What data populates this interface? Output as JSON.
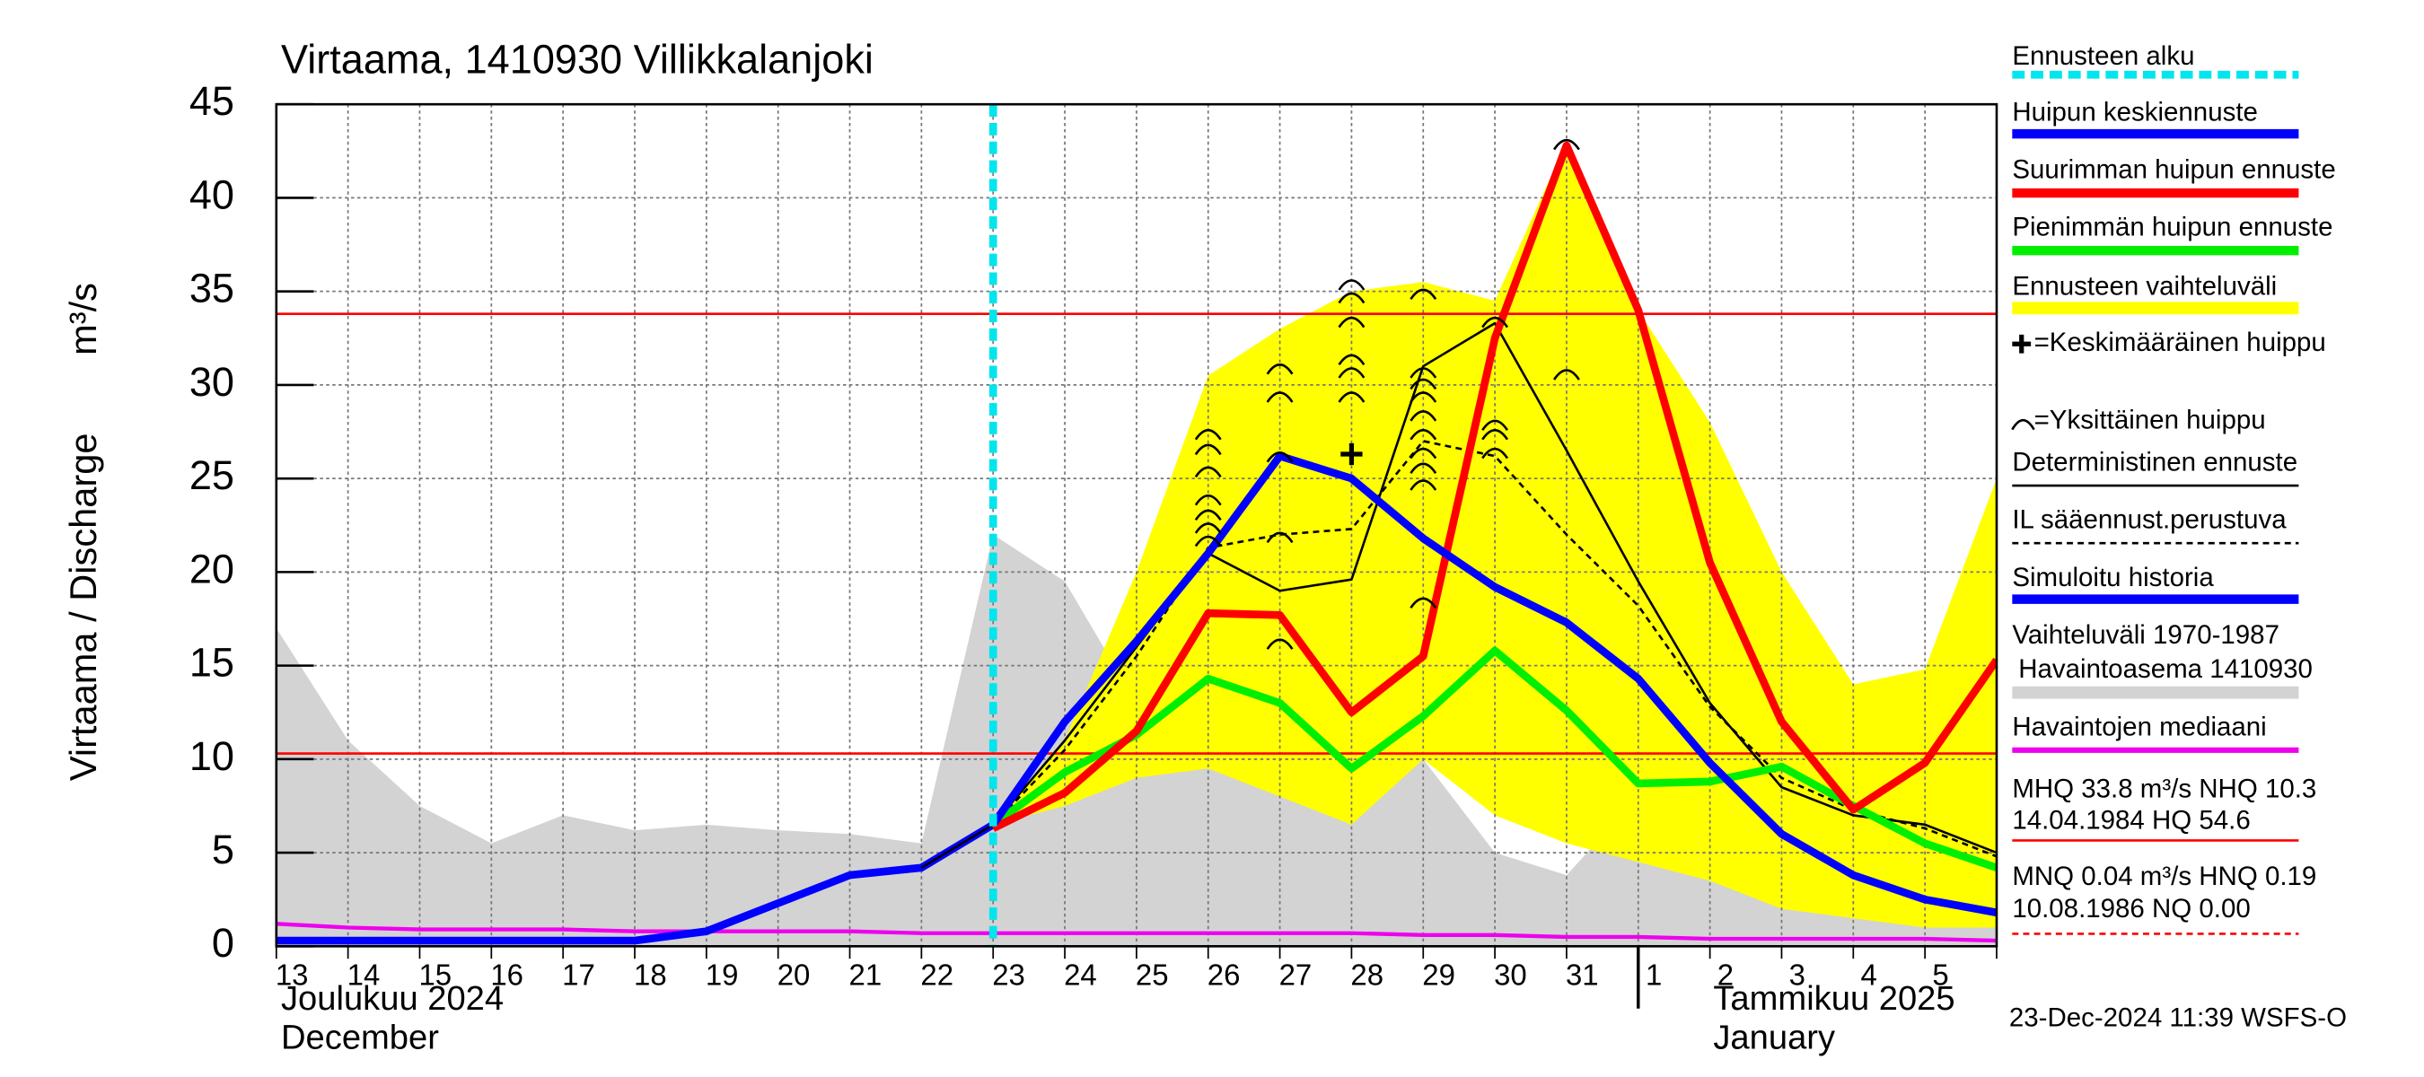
{
  "chart_data": {
    "type": "line",
    "title": "Virtaama, 1410930 Villikkalanjoki",
    "ylabel": "Virtaama / Discharge",
    "yunit": "m³/s",
    "categories": [
      "13",
      "14",
      "15",
      "16",
      "17",
      "18",
      "19",
      "20",
      "21",
      "22",
      "23",
      "24",
      "25",
      "26",
      "27",
      "28",
      "29",
      "30",
      "31",
      "1",
      "2",
      "3",
      "4",
      "5",
      null
    ],
    "month_labels": [
      [
        "Joulukuu  2024",
        "December"
      ],
      [
        "Tammikuu  2025",
        "January"
      ]
    ],
    "timestamp": "23-Dec-2024 11:39 WSFS-O",
    "ylim": [
      0,
      45
    ],
    "yticks": [
      0,
      5,
      10,
      15,
      20,
      25,
      30,
      35,
      40,
      45
    ],
    "grid": true,
    "hlines": [
      {
        "value": 33.8,
        "color": "#ff0000"
      },
      {
        "value": 10.3,
        "color": "#ff0000"
      },
      {
        "value": 0,
        "color": "#ff0000",
        "dashed": true
      }
    ],
    "notes": [
      [
        "MHQ 33.8 m³/s NHQ 10.3",
        "14.04.1984 HQ 54.6"
      ],
      [
        "MNQ 0.04 m³/s HNQ 0.19",
        "10.08.1986 NQ 0.00"
      ]
    ],
    "series": [
      {
        "name": "Ennusteen alku",
        "kind": "vline",
        "color": "#00e5ee",
        "x": 10
      },
      {
        "name": "Huipun keskiennuste",
        "kind": "line",
        "color": "#0000ff",
        "width": 5,
        "values": [
          null,
          null,
          null,
          null,
          null,
          null,
          null,
          null,
          null,
          null,
          6.5,
          12,
          16.3,
          21,
          26.2,
          25,
          21.8,
          19.2,
          17.3,
          14.3,
          9.8,
          6,
          3.8,
          2.5,
          1.8
        ]
      },
      {
        "name": "Suurimman huipun ennuste",
        "kind": "line",
        "color": "#ff0000",
        "width": 5,
        "values": [
          null,
          null,
          null,
          null,
          null,
          null,
          null,
          null,
          null,
          null,
          6.3,
          8.2,
          11.5,
          17.8,
          17.7,
          12.5,
          15.5,
          32.5,
          42.8,
          34,
          20.5,
          12,
          7.3,
          9.8,
          15.3
        ]
      },
      {
        "name": "Pienimmän huipun ennuste",
        "kind": "line",
        "color": "#00ee00",
        "width": 5,
        "values": [
          null,
          null,
          null,
          null,
          null,
          null,
          null,
          null,
          null,
          null,
          6.5,
          9.3,
          11.3,
          14.3,
          13,
          9.5,
          12.3,
          15.8,
          12.6,
          8.7,
          8.8,
          9.6,
          7.5,
          5.5,
          4.2
        ]
      },
      {
        "name": "Ennusteen vaihteluväli",
        "kind": "band",
        "color": "#ffff00",
        "upper": [
          null,
          null,
          null,
          null,
          null,
          null,
          null,
          null,
          null,
          null,
          6.5,
          11,
          20,
          30.5,
          33,
          35,
          35.5,
          34.5,
          43,
          34,
          28,
          20,
          14,
          14.8,
          25
        ],
        "lower": [
          null,
          null,
          null,
          null,
          null,
          null,
          null,
          null,
          null,
          null,
          6.5,
          7.5,
          9,
          9.5,
          8,
          6.5,
          10,
          7,
          5.5,
          4.5,
          3.5,
          2,
          1.5,
          1,
          1
        ]
      },
      {
        "name": "=Keskimääräinen huippu",
        "kind": "plus",
        "color": "#000000",
        "points": [
          {
            "x": 15,
            "y": 26.3
          }
        ]
      },
      {
        "name": "=Yksittäinen huippu",
        "kind": "arc",
        "color": "#000000",
        "points": [
          {
            "x": 13,
            "y": 27.5
          },
          {
            "x": 13,
            "y": 26.7
          },
          {
            "x": 13,
            "y": 25.5
          },
          {
            "x": 13,
            "y": 24
          },
          {
            "x": 13,
            "y": 22.5
          },
          {
            "x": 13,
            "y": 21.8
          },
          {
            "x": 13,
            "y": 23.2
          },
          {
            "x": 14,
            "y": 31
          },
          {
            "x": 14,
            "y": 29.5
          },
          {
            "x": 14,
            "y": 26.3
          },
          {
            "x": 14,
            "y": 22
          },
          {
            "x": 14,
            "y": 16.3
          },
          {
            "x": 15,
            "y": 35.5
          },
          {
            "x": 15,
            "y": 34.8
          },
          {
            "x": 15,
            "y": 33.5
          },
          {
            "x": 15,
            "y": 31.5
          },
          {
            "x": 15,
            "y": 30.8
          },
          {
            "x": 15,
            "y": 29.5
          },
          {
            "x": 16,
            "y": 35
          },
          {
            "x": 16,
            "y": 30.8
          },
          {
            "x": 16,
            "y": 30.2
          },
          {
            "x": 16,
            "y": 29.5
          },
          {
            "x": 16,
            "y": 28.5
          },
          {
            "x": 16,
            "y": 27.5
          },
          {
            "x": 16,
            "y": 26.5
          },
          {
            "x": 16,
            "y": 25.7
          },
          {
            "x": 16,
            "y": 24.8
          },
          {
            "x": 16,
            "y": 18.5
          },
          {
            "x": 17,
            "y": 33.5
          },
          {
            "x": 17,
            "y": 28
          },
          {
            "x": 17,
            "y": 27.5
          },
          {
            "x": 17,
            "y": 26.5
          },
          {
            "x": 18,
            "y": 43
          },
          {
            "x": 18,
            "y": 30.7
          }
        ]
      },
      {
        "name": "Deterministinen ennuste",
        "kind": "line",
        "color": "#000000",
        "width": 1.5,
        "values": [
          null,
          null,
          null,
          null,
          null,
          null,
          null,
          null,
          null,
          4.2,
          6.5,
          11,
          16,
          21,
          19,
          19.6,
          31,
          33.3,
          26.5,
          19.5,
          13,
          8.5,
          7,
          6.5,
          5
        ]
      },
      {
        "name": "IL sääennust.perustuva",
        "kind": "line",
        "color": "#000000",
        "width": 1.5,
        "dashed": true,
        "values": [
          null,
          null,
          null,
          null,
          null,
          null,
          null,
          null,
          null,
          null,
          6.5,
          10.5,
          15.5,
          21.3,
          22,
          22.3,
          27,
          26.2,
          22,
          18.2,
          12.8,
          9,
          7.3,
          6.3,
          4.8
        ]
      },
      {
        "name": "Simuloitu historia",
        "kind": "line",
        "color": "#0000ff",
        "width": 5,
        "values": [
          0.3,
          0.3,
          0.3,
          0.3,
          0.3,
          0.3,
          0.8,
          2.3,
          3.8,
          4.2,
          6.5,
          null,
          null,
          null,
          null,
          null,
          null,
          null,
          null,
          null,
          null,
          null,
          null,
          null,
          null
        ]
      },
      {
        "name": "Vaihteluväli 1970-1987",
        "name2": "Havaintoasema 1410930",
        "kind": "band",
        "color": "#d3d3d3",
        "upper": [
          17,
          11,
          7.5,
          5.5,
          7,
          6.2,
          6.5,
          6.2,
          6,
          5.5,
          22,
          19.5,
          13,
          10.5,
          15,
          13,
          10,
          5,
          3.8,
          8,
          6.5,
          5.5,
          5,
          4,
          3.8
        ],
        "lower": [
          0,
          0,
          0,
          0,
          0,
          0,
          0,
          0,
          0,
          0,
          0,
          0,
          0,
          0,
          0,
          0,
          0,
          0,
          0,
          0,
          0,
          0,
          0,
          0,
          0
        ]
      },
      {
        "name": "Havaintojen mediaani",
        "kind": "line",
        "color": "#ee00ee",
        "width": 2.5,
        "values": [
          1.2,
          1,
          0.9,
          0.9,
          0.9,
          0.8,
          0.8,
          0.8,
          0.8,
          0.7,
          0.7,
          0.7,
          0.7,
          0.7,
          0.7,
          0.7,
          0.6,
          0.6,
          0.5,
          0.5,
          0.4,
          0.4,
          0.4,
          0.4,
          0.3
        ]
      }
    ]
  }
}
